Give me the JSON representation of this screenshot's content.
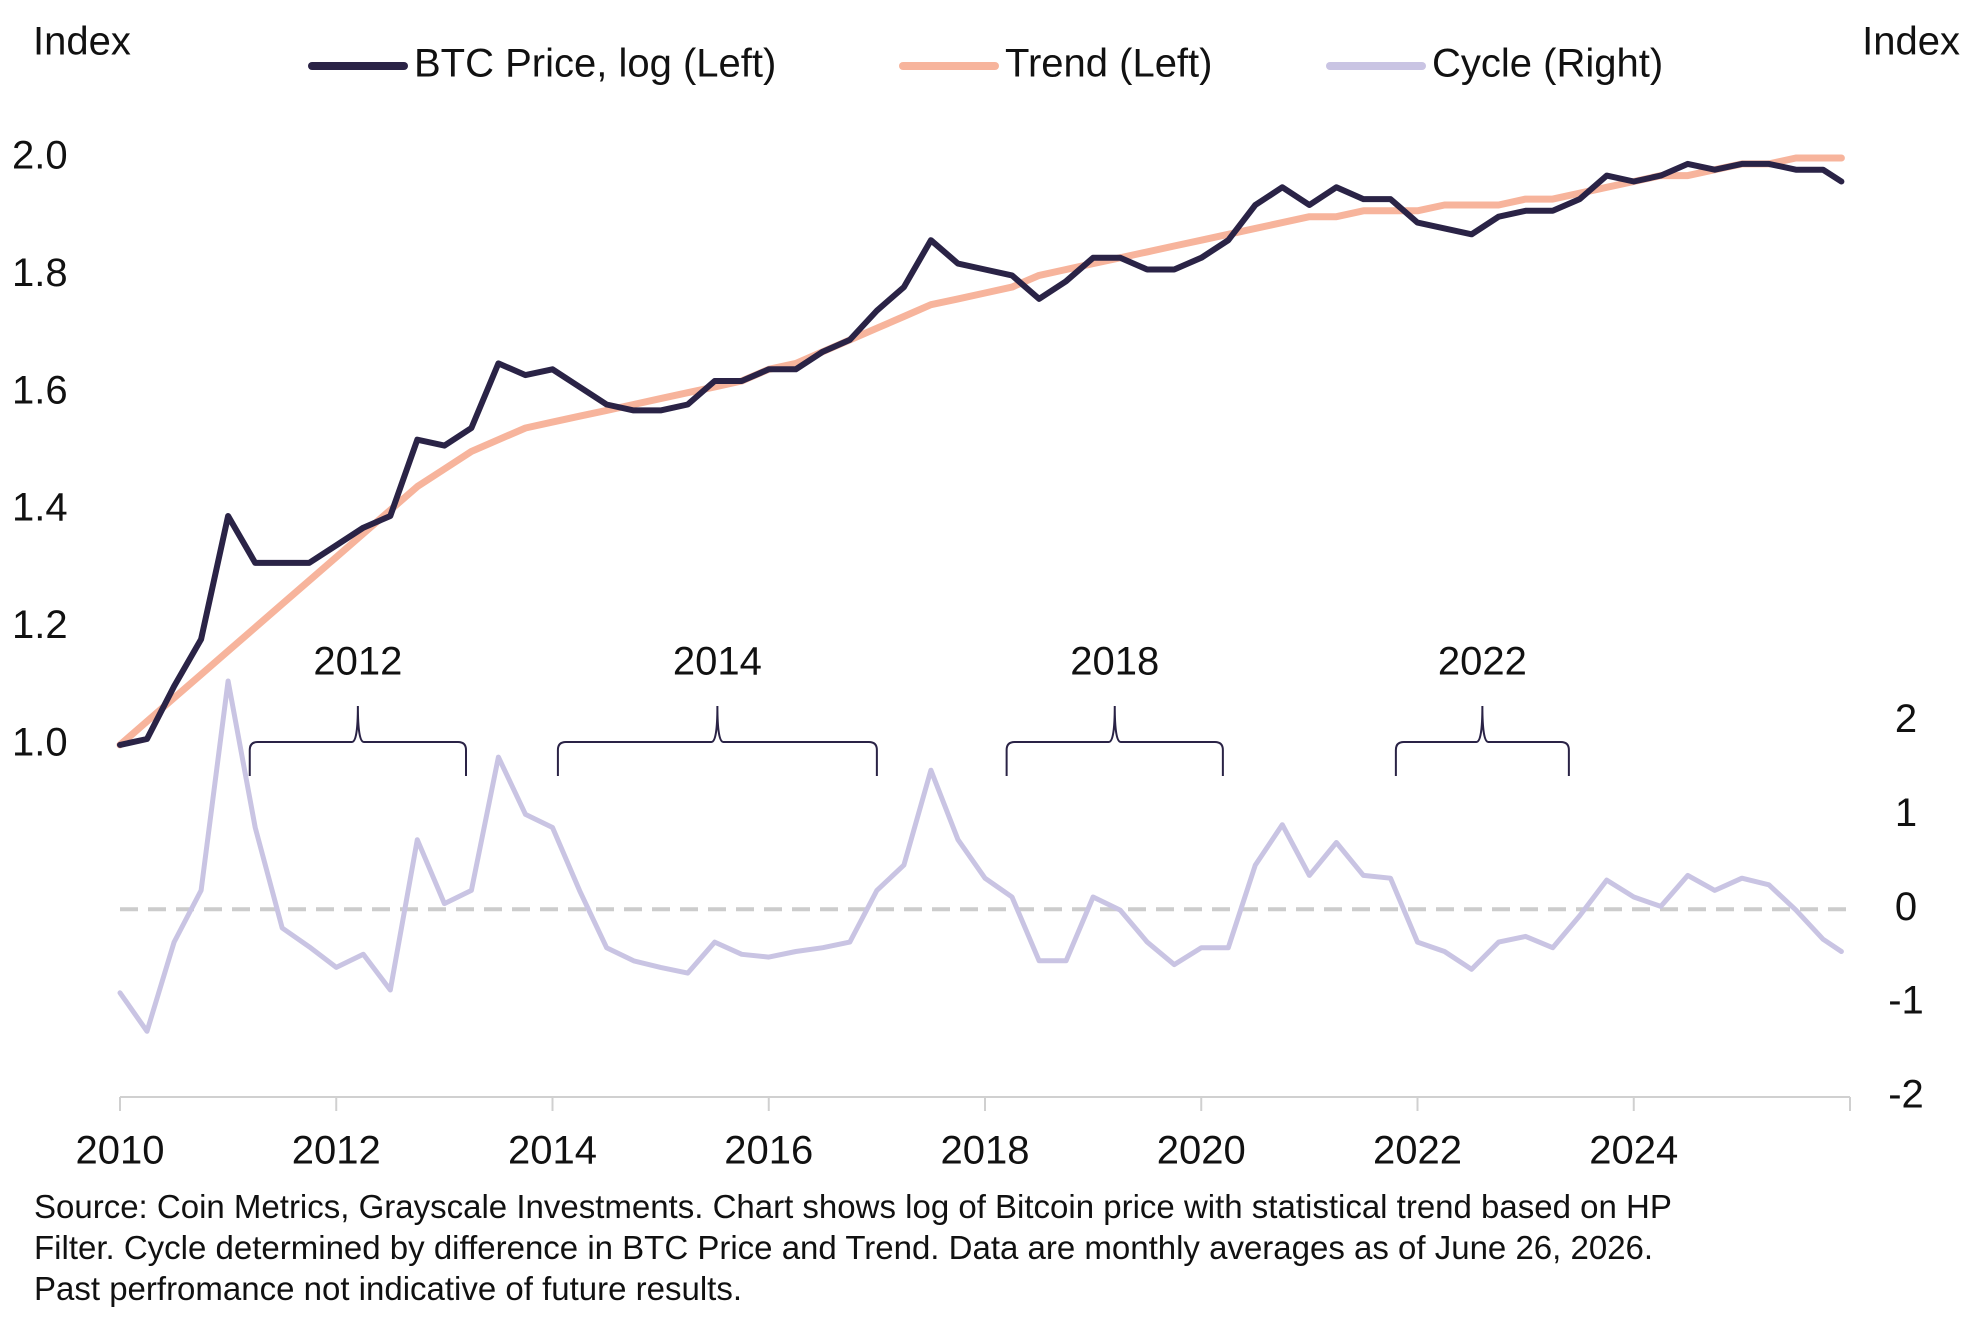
{
  "chart_data": {
    "type": "line",
    "y_label": "Index",
    "y2_label": "Index",
    "xlim": [
      2010,
      2026
    ],
    "xticks": [
      2010,
      2012,
      2014,
      2016,
      2018,
      2020,
      2022,
      2024
    ],
    "ylim": [
      0.4,
      2.0
    ],
    "yticks": [
      {
        "value": 1,
        "label": "1.0"
      },
      1.2,
      1.4,
      1.6,
      1.8,
      {
        "value": 2,
        "label": "2.0"
      }
    ],
    "y2lim": [
      -2,
      8
    ],
    "y2ticks": [
      -2,
      -1,
      0,
      1,
      2
    ],
    "grid": false,
    "reference_lines": [
      {
        "axis": "y2",
        "value": 0,
        "color": "#cccccc",
        "style": "dashed"
      }
    ],
    "x": [
      2010,
      2010.25,
      2010.5,
      2010.75,
      2011,
      2011.25,
      2011.5,
      2011.75,
      2012,
      2012.25,
      2012.5,
      2012.75,
      2013,
      2013.25,
      2013.5,
      2013.75,
      2014,
      2014.25,
      2014.5,
      2014.75,
      2015,
      2015.25,
      2015.5,
      2015.75,
      2016,
      2016.25,
      2016.5,
      2016.75,
      2017,
      2017.25,
      2017.5,
      2017.75,
      2018,
      2018.25,
      2018.5,
      2018.75,
      2019,
      2019.25,
      2019.5,
      2019.75,
      2020,
      2020.25,
      2020.5,
      2020.75,
      2021,
      2021.25,
      2021.5,
      2021.75,
      2022,
      2022.25,
      2022.5,
      2022.75,
      2023,
      2023.25,
      2023.5,
      2023.75,
      2024,
      2024.25,
      2024.5,
      2024.75,
      2025,
      2025.25,
      2025.5,
      2025.75,
      2025.92
    ],
    "series": [
      {
        "name": "Cycle (Right)",
        "color": "#c9c4e3",
        "axis": "y2",
        "width": 5,
        "values": [
          -0.89,
          -1.3,
          -0.35,
          0.2,
          2.43,
          0.87,
          -0.2,
          -0.4,
          -0.62,
          -0.48,
          -0.86,
          0.74,
          0.06,
          0.2,
          1.62,
          1.01,
          0.87,
          0.2,
          -0.41,
          -0.55,
          -0.62,
          -0.68,
          -0.35,
          -0.48,
          -0.51,
          -0.45,
          -0.41,
          -0.35,
          0.2,
          0.47,
          1.48,
          0.74,
          0.33,
          0.13,
          -0.55,
          -0.55,
          0.13,
          -0.01,
          -0.35,
          -0.59,
          -0.41,
          -0.41,
          0.47,
          0.9,
          0.36,
          0.71,
          0.36,
          0.33,
          -0.35,
          -0.45,
          -0.64,
          -0.35,
          -0.29,
          -0.41,
          -0.07,
          0.31,
          0.13,
          0.03,
          0.36,
          0.2,
          0.33,
          0.26,
          -0.01,
          -0.32,
          -0.45
        ]
      },
      {
        "name": "Trend (Left)",
        "color": "#f7b49c",
        "width": 7,
        "values": [
          1.0,
          1.04,
          1.08,
          1.12,
          1.16,
          1.2,
          1.24,
          1.28,
          1.32,
          1.36,
          1.4,
          1.44,
          1.47,
          1.5,
          1.52,
          1.54,
          1.55,
          1.56,
          1.57,
          1.58,
          1.59,
          1.6,
          1.61,
          1.62,
          1.64,
          1.65,
          1.67,
          1.69,
          1.71,
          1.73,
          1.75,
          1.76,
          1.77,
          1.78,
          1.8,
          1.81,
          1.82,
          1.83,
          1.84,
          1.85,
          1.86,
          1.87,
          1.88,
          1.89,
          1.9,
          1.9,
          1.91,
          1.91,
          1.91,
          1.92,
          1.92,
          1.92,
          1.93,
          1.93,
          1.94,
          1.95,
          1.96,
          1.97,
          1.97,
          1.98,
          1.99,
          1.99,
          2.0,
          2.0,
          2.0
        ]
      },
      {
        "name": "BTC Price, log (Left)",
        "color": "#2a2346",
        "width": 6,
        "values": [
          1.0,
          1.01,
          1.1,
          1.18,
          1.39,
          1.31,
          1.31,
          1.31,
          1.34,
          1.37,
          1.39,
          1.52,
          1.51,
          1.54,
          1.65,
          1.63,
          1.64,
          1.61,
          1.58,
          1.57,
          1.57,
          1.58,
          1.62,
          1.62,
          1.64,
          1.64,
          1.67,
          1.69,
          1.74,
          1.78,
          1.86,
          1.82,
          1.81,
          1.8,
          1.76,
          1.79,
          1.83,
          1.83,
          1.81,
          1.81,
          1.83,
          1.86,
          1.92,
          1.95,
          1.92,
          1.95,
          1.93,
          1.93,
          1.89,
          1.88,
          1.87,
          1.9,
          1.91,
          1.91,
          1.93,
          1.97,
          1.96,
          1.97,
          1.99,
          1.98,
          1.99,
          1.99,
          1.98,
          1.98,
          1.96
        ]
      }
    ],
    "legend_order": [
      2,
      1,
      0
    ],
    "annotations": [
      {
        "text": "2012",
        "span": [
          2011.2,
          2013.2
        ]
      },
      {
        "text": "2014",
        "span": [
          2014.05,
          2017.0
        ]
      },
      {
        "text": "2018",
        "span": [
          2018.2,
          2020.2
        ]
      },
      {
        "text": "2022",
        "span": [
          2021.8,
          2023.4
        ]
      }
    ],
    "footnote": [
      "Source: Coin Metrics, Grayscale Investments. Chart shows log of Bitcoin price with statistical trend based on HP",
      "Filter. Cycle determined by difference in BTC Price and Trend. Data are monthly averages as of June 26, 2026.",
      "Past perfromance not indicative of future results."
    ]
  }
}
